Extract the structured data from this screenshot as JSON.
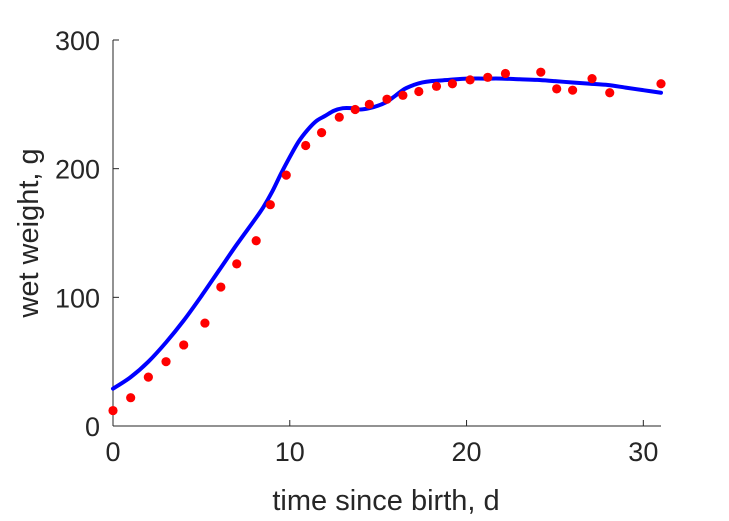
{
  "chart_data": {
    "type": "scatter",
    "xlabel": "time since birth, d",
    "ylabel": "wet weight, g",
    "xlim": [
      0,
      31
    ],
    "ylim": [
      0,
      300
    ],
    "xticks": [
      0,
      10,
      20,
      30
    ],
    "yticks": [
      0,
      100,
      200,
      300
    ],
    "grid": false,
    "colors": {
      "points": "#ff0000",
      "fit": "#0000ff",
      "axes": "#262626"
    },
    "series": [
      {
        "kind": "points",
        "x": [
          0,
          1,
          2,
          3,
          4,
          5.2,
          6.1,
          7,
          8.1,
          8.9,
          9.8,
          10.9,
          11.8,
          12.8,
          13.7,
          14.5,
          15.5,
          16.4,
          17.3,
          18.3,
          19.2,
          20.2,
          21.2,
          22.2,
          24.2,
          25.1,
          26,
          27.1,
          28.1,
          31
        ],
        "y": [
          12,
          22,
          38,
          50,
          63,
          80,
          108,
          126,
          144,
          172,
          195,
          218,
          228,
          240,
          246,
          250,
          254,
          257,
          260,
          264,
          266,
          269,
          271,
          274,
          275,
          262,
          261,
          270,
          259,
          266
        ]
      },
      {
        "kind": "line",
        "x": [
          0,
          1,
          2,
          3,
          4,
          5,
          6,
          7,
          8,
          8.5,
          9,
          9.5,
          10,
          10.5,
          11,
          11.5,
          12,
          12.5,
          13,
          13.5,
          14,
          14.5,
          15,
          15.5,
          16,
          16.5,
          17,
          17.5,
          18,
          19,
          20,
          21,
          22,
          23,
          24,
          25,
          26,
          27,
          28,
          29,
          30,
          31
        ],
        "y": [
          29,
          38,
          50,
          65,
          82,
          101,
          121,
          141,
          160,
          170,
          182,
          196,
          209,
          221,
          230,
          237,
          241,
          245,
          247,
          247,
          246,
          247,
          249,
          252,
          257,
          262,
          265,
          267,
          268,
          269,
          270,
          270,
          270,
          269.5,
          269,
          268,
          267,
          266,
          265,
          263,
          261,
          259
        ]
      }
    ]
  }
}
